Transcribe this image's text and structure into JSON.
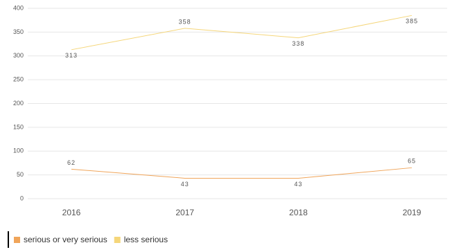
{
  "chart_data": {
    "type": "line",
    "categories": [
      "2016",
      "2017",
      "2018",
      "2019"
    ],
    "series": [
      {
        "name": "serious or very serious",
        "color": "#f0a55a",
        "values": [
          62,
          43,
          43,
          65
        ]
      },
      {
        "name": "less serious",
        "color": "#f5d67a",
        "values": [
          313,
          358,
          338,
          385
        ]
      }
    ],
    "ylim": [
      0,
      400
    ],
    "yticks": [
      0,
      50,
      100,
      150,
      200,
      250,
      300,
      350,
      400
    ],
    "grid": true,
    "legend": "bottom-left"
  }
}
